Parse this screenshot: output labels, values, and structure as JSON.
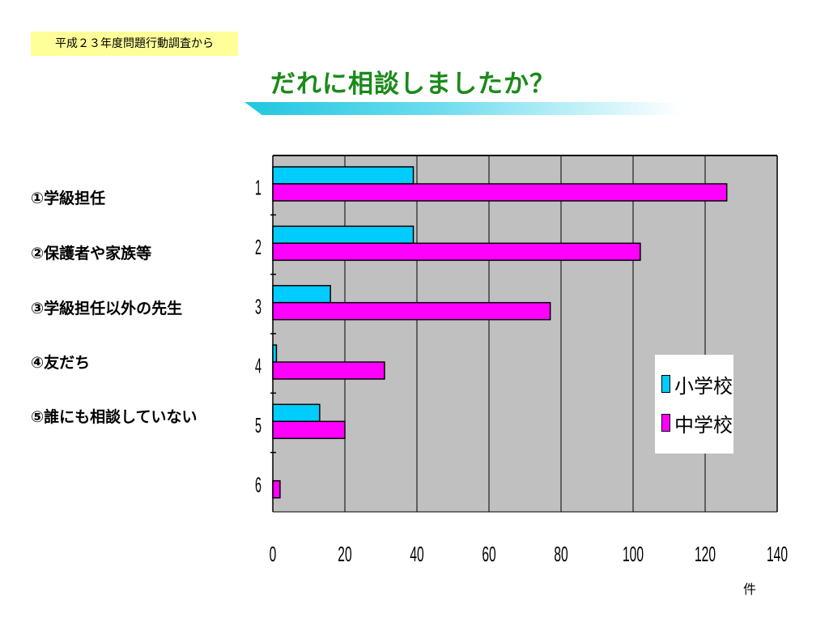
{
  "header": {
    "source": "平成２３年度問題行動調査から",
    "title": "だれに相談しましたか？"
  },
  "categories_text": [
    "①学級担任",
    "②保護者や家族等",
    "③学級担任以外の先生",
    "④友だち",
    "⑤誰にも相談していない"
  ],
  "unit": "件",
  "colors": {
    "elementary": "#00ccff",
    "junior_high": "#ff00ff",
    "plot_bg": "#c0c0c0",
    "title": "#1a8a1a"
  },
  "chart_data": {
    "type": "bar",
    "orientation": "horizontal",
    "categories": [
      "1",
      "2",
      "3",
      "4",
      "5",
      "6"
    ],
    "series": [
      {
        "name": "小学校",
        "values": [
          39,
          39,
          16,
          1,
          13,
          0
        ]
      },
      {
        "name": "中学校",
        "values": [
          126,
          102,
          77,
          31,
          20,
          2
        ]
      }
    ],
    "xticks": [
      "0",
      "20",
      "40",
      "60",
      "80",
      "100",
      "120",
      "140"
    ],
    "xlim": [
      0,
      140
    ],
    "grid": true,
    "legend_position": "right"
  }
}
